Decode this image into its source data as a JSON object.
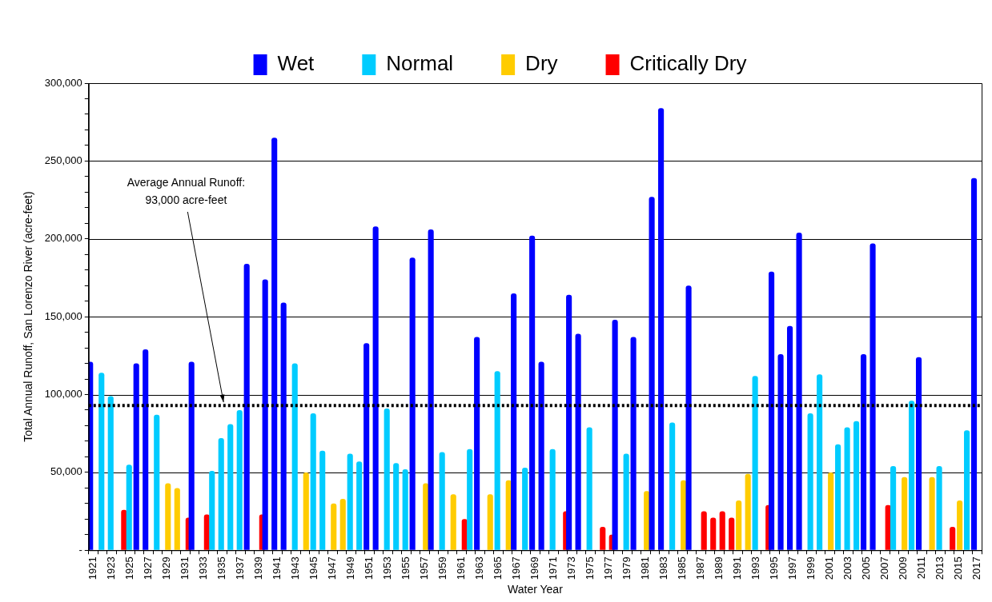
{
  "chart_data": {
    "type": "bar",
    "xlabel": "Water Year",
    "ylabel": "Total Annual Runoff, San Lorenzo River (acre-feet)",
    "categories": [
      "1921",
      null,
      "1923",
      null,
      "1925",
      null,
      "1927",
      null,
      "1929",
      null,
      "1931",
      null,
      "1933",
      null,
      "1935",
      null,
      "1937",
      null,
      "1939",
      null,
      "1941",
      null,
      "1943",
      null,
      "1945",
      null,
      "1947",
      null,
      "1949",
      null,
      "1951",
      null,
      "1953",
      null,
      "1955",
      null,
      "1957",
      null,
      "1959",
      null,
      "1961",
      null,
      "1963",
      null,
      "1965",
      null,
      "1967",
      null,
      "1969",
      null,
      "1971",
      null,
      "1973",
      null,
      "1975",
      null,
      "1977",
      null,
      "1979",
      null,
      "1981",
      null,
      "1983",
      null,
      "1985",
      null,
      "1987",
      null,
      "1989",
      null,
      "1991",
      null,
      "1993",
      null,
      "1995",
      null,
      "1997",
      null,
      "1999",
      null,
      "2001",
      null,
      "2003",
      null,
      "2005",
      null,
      "2007",
      null,
      "2009",
      null,
      "2011",
      null,
      "2013",
      null,
      "2015",
      null,
      "2017"
    ],
    "series": [
      {
        "name": "Wet",
        "color": "#0000ff",
        "values": [
          121000,
          null,
          null,
          null,
          null,
          120000,
          129000,
          null,
          null,
          null,
          null,
          121000,
          null,
          null,
          null,
          null,
          null,
          184000,
          null,
          174000,
          265000,
          159000,
          null,
          null,
          null,
          null,
          null,
          null,
          null,
          null,
          133000,
          208000,
          null,
          null,
          null,
          188000,
          null,
          206000,
          null,
          null,
          null,
          null,
          137000,
          null,
          null,
          null,
          165000,
          null,
          202000,
          121000,
          null,
          null,
          164000,
          139000,
          null,
          null,
          null,
          148000,
          null,
          137000,
          null,
          227000,
          284000,
          null,
          null,
          170000,
          null,
          null,
          null,
          null,
          null,
          null,
          null,
          null,
          179000,
          126000,
          144000,
          204000,
          null,
          null,
          null,
          null,
          null,
          null,
          126000,
          197000,
          null,
          null,
          null,
          null,
          124000,
          null,
          null,
          null,
          null,
          null,
          239000
        ]
      },
      {
        "name": "Normal",
        "color": "#00ccff",
        "values": [
          null,
          114000,
          99000,
          null,
          55000,
          null,
          null,
          87000,
          null,
          null,
          null,
          null,
          null,
          51000,
          72000,
          81000,
          90000,
          null,
          null,
          null,
          null,
          null,
          120000,
          null,
          88000,
          64000,
          null,
          null,
          62000,
          57000,
          null,
          null,
          91000,
          56000,
          52000,
          null,
          null,
          null,
          63000,
          null,
          null,
          65000,
          null,
          null,
          115000,
          null,
          null,
          53000,
          null,
          null,
          65000,
          null,
          null,
          null,
          79000,
          null,
          null,
          null,
          62000,
          null,
          null,
          null,
          null,
          82000,
          null,
          null,
          null,
          null,
          null,
          null,
          null,
          null,
          112000,
          null,
          null,
          null,
          null,
          null,
          88000,
          113000,
          null,
          68000,
          79000,
          83000,
          null,
          null,
          null,
          54000,
          null,
          96000,
          null,
          null,
          54000,
          null,
          null,
          77000,
          null
        ]
      },
      {
        "name": "Dry",
        "color": "#ffcc00",
        "values": [
          null,
          null,
          null,
          null,
          null,
          null,
          null,
          null,
          43000,
          40000,
          null,
          null,
          null,
          null,
          null,
          null,
          null,
          null,
          null,
          null,
          null,
          null,
          null,
          50000,
          null,
          null,
          30000,
          33000,
          null,
          null,
          null,
          null,
          null,
          null,
          null,
          null,
          43000,
          null,
          null,
          36000,
          null,
          null,
          null,
          36000,
          null,
          45000,
          null,
          null,
          null,
          null,
          null,
          null,
          null,
          null,
          null,
          null,
          null,
          null,
          null,
          null,
          38000,
          null,
          null,
          null,
          45000,
          null,
          null,
          null,
          null,
          null,
          32000,
          49000,
          null,
          null,
          null,
          null,
          null,
          null,
          null,
          null,
          50000,
          null,
          null,
          null,
          null,
          null,
          null,
          null,
          47000,
          null,
          null,
          47000,
          null,
          null,
          32000,
          null,
          null
        ]
      },
      {
        "name": "Critically Dry",
        "color": "#ff0000",
        "values": [
          null,
          null,
          null,
          26000,
          null,
          null,
          null,
          null,
          null,
          null,
          21000,
          null,
          23000,
          null,
          null,
          null,
          null,
          null,
          23000,
          null,
          null,
          null,
          null,
          null,
          null,
          null,
          null,
          null,
          null,
          null,
          null,
          null,
          null,
          null,
          null,
          null,
          null,
          null,
          null,
          null,
          20000,
          null,
          null,
          null,
          null,
          null,
          null,
          null,
          null,
          null,
          null,
          25000,
          null,
          null,
          null,
          15000,
          10000,
          null,
          null,
          null,
          null,
          null,
          null,
          null,
          null,
          null,
          25000,
          21000,
          25000,
          21000,
          null,
          null,
          null,
          29000,
          null,
          null,
          null,
          null,
          null,
          null,
          null,
          null,
          null,
          null,
          null,
          null,
          29000,
          null,
          null,
          null,
          null,
          null,
          null,
          15000,
          null,
          null,
          null
        ]
      }
    ],
    "ylim": [
      0,
      300000
    ],
    "yticks": [
      {
        "value": 0,
        "label": "-"
      },
      {
        "value": 10000,
        "label": null
      },
      {
        "value": 20000,
        "label": null
      },
      {
        "value": 30000,
        "label": null
      },
      {
        "value": 40000,
        "label": null
      },
      {
        "value": 50000,
        "label": "50,000"
      },
      {
        "value": 60000,
        "label": null
      },
      {
        "value": 70000,
        "label": null
      },
      {
        "value": 80000,
        "label": null
      },
      {
        "value": 90000,
        "label": null
      },
      {
        "value": 100000,
        "label": "100,000"
      },
      {
        "value": 110000,
        "label": null
      },
      {
        "value": 120000,
        "label": null
      },
      {
        "value": 130000,
        "label": null
      },
      {
        "value": 140000,
        "label": null
      },
      {
        "value": 150000,
        "label": "150,000"
      },
      {
        "value": 160000,
        "label": null
      },
      {
        "value": 170000,
        "label": null
      },
      {
        "value": 180000,
        "label": null
      },
      {
        "value": 190000,
        "label": null
      },
      {
        "value": 200000,
        "label": "200,000"
      },
      {
        "value": 210000,
        "label": null
      },
      {
        "value": 220000,
        "label": null
      },
      {
        "value": 230000,
        "label": null
      },
      {
        "value": 240000,
        "label": null
      },
      {
        "value": 250000,
        "label": "250,000"
      },
      {
        "value": 260000,
        "label": null
      },
      {
        "value": 270000,
        "label": null
      },
      {
        "value": 280000,
        "label": null
      },
      {
        "value": 290000,
        "label": null
      },
      {
        "value": 300000,
        "label": "300,000"
      }
    ],
    "grid": "y",
    "legend": "top",
    "ref_lines": [
      {
        "axis": "y",
        "value": 93000,
        "label": "Average Annual Runoff:\n93,000 acre-feet",
        "color": "#000000",
        "line_style": "dotted"
      }
    ]
  }
}
